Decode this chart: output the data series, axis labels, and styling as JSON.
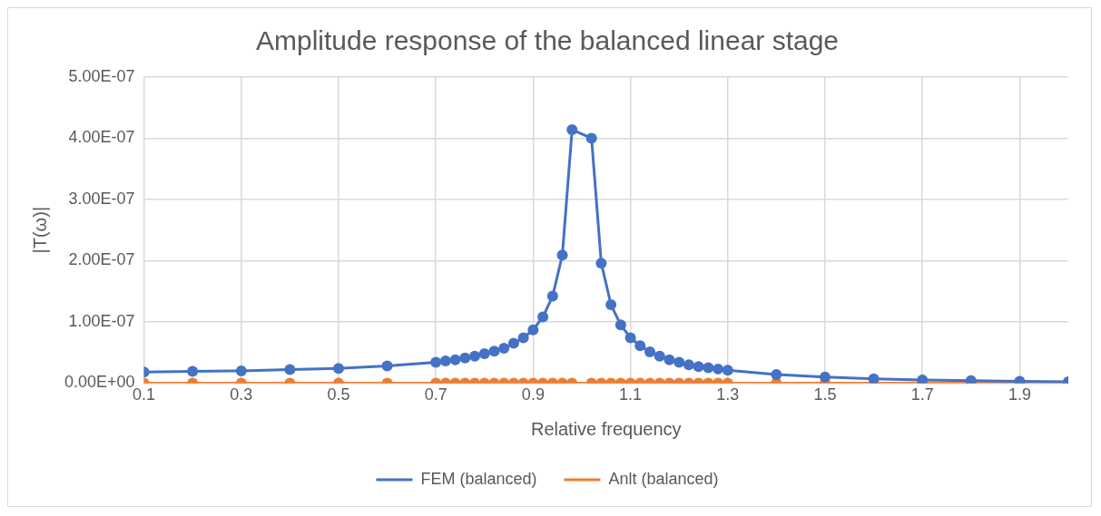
{
  "chart_data": {
    "type": "line",
    "title": "Amplitude response of the balanced linear stage",
    "xlabel": "Relative frequency",
    "ylabel": "|T(ω)|",
    "x": [
      0.1,
      0.2,
      0.3,
      0.4,
      0.5,
      0.6,
      0.7,
      0.72,
      0.74,
      0.76,
      0.78,
      0.8,
      0.82,
      0.84,
      0.86,
      0.88,
      0.9,
      0.92,
      0.94,
      0.96,
      0.98,
      1.02,
      1.04,
      1.06,
      1.08,
      1.1,
      1.12,
      1.14,
      1.16,
      1.18,
      1.2,
      1.22,
      1.24,
      1.26,
      1.28,
      1.3,
      1.4,
      1.5,
      1.6,
      1.7,
      1.8,
      1.9,
      2.0
    ],
    "series": [
      {
        "name": "FEM (balanced)",
        "color": "#4472c4",
        "values": [
          1.8e-08,
          1.9e-08,
          2e-08,
          2.2e-08,
          2.4e-08,
          2.8e-08,
          3.4e-08,
          3.6e-08,
          3.8e-08,
          4.1e-08,
          4.4e-08,
          4.8e-08,
          5.2e-08,
          5.7e-08,
          6.5e-08,
          7.4e-08,
          8.7e-08,
          1.08e-07,
          1.42e-07,
          2.09e-07,
          4.14e-07,
          4e-07,
          1.96e-07,
          1.28e-07,
          9.5e-08,
          7.4e-08,
          6.1e-08,
          5.1e-08,
          4.4e-08,
          3.8e-08,
          3.4e-08,
          3e-08,
          2.7e-08,
          2.5e-08,
          2.3e-08,
          2.1e-08,
          1.4e-08,
          1e-08,
          7e-09,
          5e-09,
          4e-09,
          3e-09,
          2e-09
        ]
      },
      {
        "name": "Anlt (balanced)",
        "color": "#ed7d31",
        "values": [
          0,
          0,
          0,
          0,
          0,
          0,
          0,
          0,
          0,
          0,
          0,
          0,
          0,
          0,
          0,
          0,
          0,
          0,
          0,
          0,
          0,
          0,
          0,
          0,
          0,
          0,
          0,
          0,
          0,
          0,
          0,
          0,
          0,
          0,
          0,
          0,
          0,
          0,
          0,
          0,
          0,
          0,
          0
        ]
      }
    ],
    "xlim": [
      0.1,
      2.0
    ],
    "xticks": [
      0.1,
      0.3,
      0.5,
      0.7,
      0.9,
      1.1,
      1.3,
      1.5,
      1.7,
      1.9
    ],
    "ylim": [
      0,
      5e-07
    ],
    "yticks": [
      {
        "value": 0,
        "label": "0.00E+00"
      },
      {
        "value": 1e-07,
        "label": "1.00E-07"
      },
      {
        "value": 2e-07,
        "label": "2.00E-07"
      },
      {
        "value": 3e-07,
        "label": "3.00E-07"
      },
      {
        "value": 4e-07,
        "label": "4.00E-07"
      },
      {
        "value": 5e-07,
        "label": "5.00E-07"
      }
    ],
    "grid": true,
    "legend": "bottom",
    "marker": "circle",
    "line_style": "solid"
  }
}
